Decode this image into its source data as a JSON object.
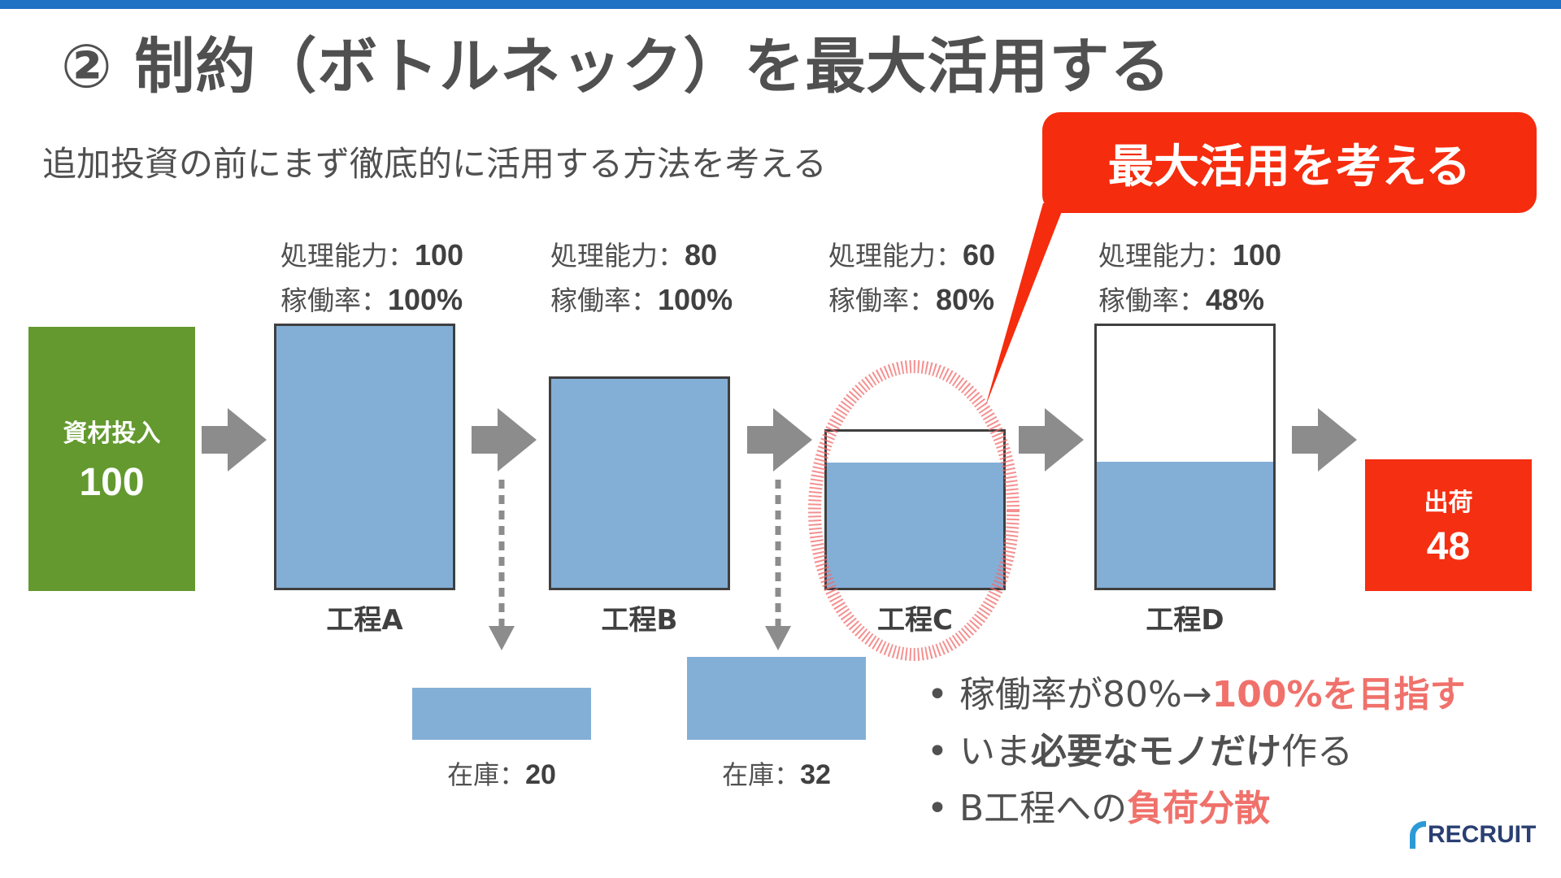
{
  "colors": {
    "topbar": "#1f72c4",
    "input": "#63992f",
    "output": "#f52f12",
    "callout": "#f52c0e",
    "fill": "#83afd6",
    "arrow": "#8c8c8c",
    "circle": "#f06b6b",
    "highlight": "#f0716b"
  },
  "title": "② 制約（ボトルネック）を最大活用する",
  "subtitle": "追加投資の前にまず徹底的に活用する方法を考える",
  "callout": "最大活用を考える",
  "input": {
    "label": "資材投入",
    "value": "100"
  },
  "output": {
    "label": "出荷",
    "value": "48"
  },
  "capacity_label": "処理能力：",
  "utilization_label": "稼働率：",
  "processes": [
    {
      "name": "工程A",
      "capacity": "100",
      "utilization": "100%",
      "fill_fraction": 1.0
    },
    {
      "name": "工程B",
      "capacity": "80",
      "utilization": "100%",
      "fill_fraction": 1.0
    },
    {
      "name": "工程C",
      "capacity": "60",
      "utilization": "80%",
      "fill_fraction": 0.8
    },
    {
      "name": "工程D",
      "capacity": "100",
      "utilization": "48%",
      "fill_fraction": 0.48
    }
  ],
  "inventory_label": "在庫：",
  "inventories": [
    {
      "value": "20"
    },
    {
      "value": "32"
    }
  ],
  "bullets": [
    {
      "dot": "•",
      "parts": [
        {
          "text": "稼働率が80%→",
          "style": "normal"
        },
        {
          "text": "100%を目指す",
          "style": "highlight"
        }
      ]
    },
    {
      "dot": "•",
      "parts": [
        {
          "text": "いま",
          "style": "normal"
        },
        {
          "text": "必要なモノだけ",
          "style": "bold"
        },
        {
          "text": "作る",
          "style": "normal"
        }
      ]
    },
    {
      "dot": "•",
      "parts": [
        {
          "text": "B工程への",
          "style": "normal"
        },
        {
          "text": "負荷分散",
          "style": "highlight"
        }
      ]
    }
  ],
  "logo": "RECRUIT"
}
